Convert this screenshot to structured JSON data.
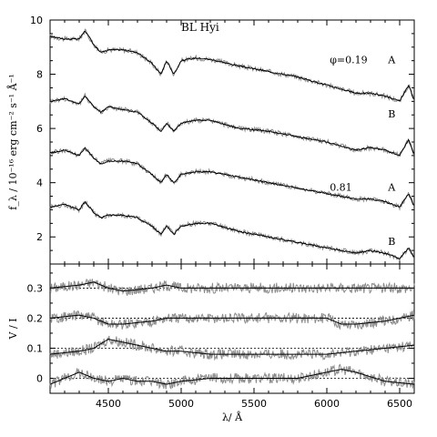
{
  "chart_data": [
    {
      "type": "line",
      "title": "BL Hyi",
      "xlabel": "λ/ Å",
      "ylabel": "f_λ / 10⁻¹⁶ erg cm⁻² s⁻¹ Å⁻¹",
      "xlim": [
        4100,
        6600
      ],
      "ylim": [
        1,
        10
      ],
      "yticks": [
        2,
        4,
        6,
        8,
        10
      ],
      "annotations": [
        {
          "text": "φ=0.19",
          "x": 6020,
          "y": 8.4
        },
        {
          "text": "A",
          "x": 6420,
          "y": 8.4
        },
        {
          "text": "B",
          "x": 6420,
          "y": 6.4
        },
        {
          "text": "0.81",
          "x": 6020,
          "y": 3.7
        },
        {
          "text": "A",
          "x": 6420,
          "y": 3.7
        },
        {
          "text": "B",
          "x": 6420,
          "y": 1.7
        }
      ],
      "series": [
        {
          "label": "A",
          "phase": "0.19",
          "color": "#000000",
          "x": [
            4100,
            4200,
            4300,
            4340,
            4400,
            4450,
            4500,
            4600,
            4700,
            4800,
            4861,
            4900,
            4950,
            5000,
            5100,
            5200,
            5400,
            5600,
            5800,
            6000,
            6200,
            6300,
            6400,
            6500,
            6562,
            6600
          ],
          "y": [
            9.4,
            9.3,
            9.3,
            9.6,
            9.1,
            8.8,
            8.9,
            8.9,
            8.8,
            8.4,
            8.0,
            8.5,
            8.0,
            8.5,
            8.6,
            8.55,
            8.3,
            8.1,
            7.9,
            7.6,
            7.3,
            7.3,
            7.2,
            7.0,
            7.6,
            7.0
          ]
        },
        {
          "label": "B",
          "phase": "0.19",
          "color": "#000000",
          "x": [
            4100,
            4200,
            4300,
            4340,
            4400,
            4450,
            4500,
            4600,
            4700,
            4800,
            4861,
            4900,
            4950,
            5000,
            5100,
            5200,
            5400,
            5600,
            5800,
            6000,
            6200,
            6300,
            6400,
            6500,
            6562,
            6600
          ],
          "y": [
            7.0,
            7.1,
            6.9,
            7.2,
            6.8,
            6.6,
            6.8,
            6.7,
            6.6,
            6.2,
            5.9,
            6.2,
            5.9,
            6.2,
            6.3,
            6.3,
            6.0,
            5.9,
            5.7,
            5.5,
            5.2,
            5.3,
            5.2,
            5.0,
            5.6,
            5.0
          ]
        },
        {
          "label": "A",
          "phase": "0.81",
          "color": "#000000",
          "x": [
            4100,
            4200,
            4300,
            4340,
            4400,
            4450,
            4500,
            4600,
            4700,
            4800,
            4861,
            4900,
            4950,
            5000,
            5100,
            5200,
            5400,
            5600,
            5800,
            6000,
            6200,
            6300,
            6400,
            6500,
            6562,
            6600
          ],
          "y": [
            5.1,
            5.2,
            5.0,
            5.3,
            4.9,
            4.7,
            4.8,
            4.8,
            4.7,
            4.3,
            4.0,
            4.3,
            4.0,
            4.3,
            4.4,
            4.4,
            4.2,
            4.0,
            3.8,
            3.6,
            3.4,
            3.4,
            3.3,
            3.1,
            3.6,
            3.1
          ]
        },
        {
          "label": "B",
          "phase": "0.81",
          "color": "#000000",
          "x": [
            4100,
            4200,
            4300,
            4340,
            4400,
            4450,
            4500,
            4600,
            4700,
            4800,
            4861,
            4900,
            4950,
            5000,
            5100,
            5200,
            5400,
            5600,
            5800,
            6000,
            6200,
            6300,
            6400,
            6500,
            6562,
            6600
          ],
          "y": [
            3.1,
            3.2,
            3.0,
            3.3,
            2.9,
            2.7,
            2.8,
            2.8,
            2.7,
            2.4,
            2.1,
            2.4,
            2.1,
            2.4,
            2.5,
            2.5,
            2.2,
            2.0,
            1.8,
            1.6,
            1.4,
            1.5,
            1.4,
            1.2,
            1.6,
            1.2
          ]
        }
      ]
    },
    {
      "type": "line",
      "xlabel": "λ/ Å",
      "ylabel": "V / I",
      "xlim": [
        4100,
        6600
      ],
      "ylim": [
        -0.05,
        0.38
      ],
      "yticks": [
        0,
        0.1,
        0.2,
        0.3
      ],
      "xticks": [
        4500,
        5000,
        5500,
        6000,
        6500
      ],
      "reference_lines": [
        0,
        0.1,
        0.2,
        0.3
      ],
      "series": [
        {
          "offset": 0.3,
          "color": "#000000",
          "x": [
            4100,
            4300,
            4400,
            4500,
            4600,
            4800,
            4900,
            5000,
            5200,
            5400,
            5600,
            5800,
            6000,
            6200,
            6400,
            6600
          ],
          "y": [
            0.3,
            0.31,
            0.32,
            0.3,
            0.29,
            0.3,
            0.31,
            0.3,
            0.3,
            0.3,
            0.3,
            0.3,
            0.3,
            0.3,
            0.3,
            0.3
          ]
        },
        {
          "offset": 0.2,
          "color": "#000000",
          "x": [
            4100,
            4300,
            4400,
            4500,
            4600,
            4800,
            4900,
            5000,
            5200,
            5400,
            5600,
            5800,
            6000,
            6100,
            6200,
            6400,
            6600
          ],
          "y": [
            0.2,
            0.21,
            0.2,
            0.18,
            0.18,
            0.19,
            0.2,
            0.2,
            0.2,
            0.2,
            0.2,
            0.2,
            0.2,
            0.18,
            0.18,
            0.19,
            0.21
          ]
        },
        {
          "offset": 0.1,
          "color": "#000000",
          "x": [
            4100,
            4300,
            4400,
            4500,
            4600,
            4800,
            4900,
            5000,
            5200,
            5400,
            5600,
            5800,
            6000,
            6200,
            6400,
            6600
          ],
          "y": [
            0.08,
            0.09,
            0.1,
            0.13,
            0.12,
            0.1,
            0.09,
            0.09,
            0.08,
            0.08,
            0.08,
            0.08,
            0.08,
            0.09,
            0.1,
            0.11
          ]
        },
        {
          "offset": 0.0,
          "color": "#000000",
          "x": [
            4100,
            4200,
            4300,
            4400,
            4500,
            4600,
            4700,
            4800,
            4900,
            5000,
            5200,
            5400,
            5600,
            5800,
            6000,
            6100,
            6200,
            6400,
            6600
          ],
          "y": [
            -0.02,
            0.0,
            0.02,
            0.0,
            -0.01,
            0.0,
            -0.01,
            -0.01,
            -0.02,
            -0.01,
            0.0,
            0.0,
            0.0,
            0.0,
            0.02,
            0.03,
            0.02,
            -0.01,
            -0.02
          ]
        }
      ]
    }
  ]
}
